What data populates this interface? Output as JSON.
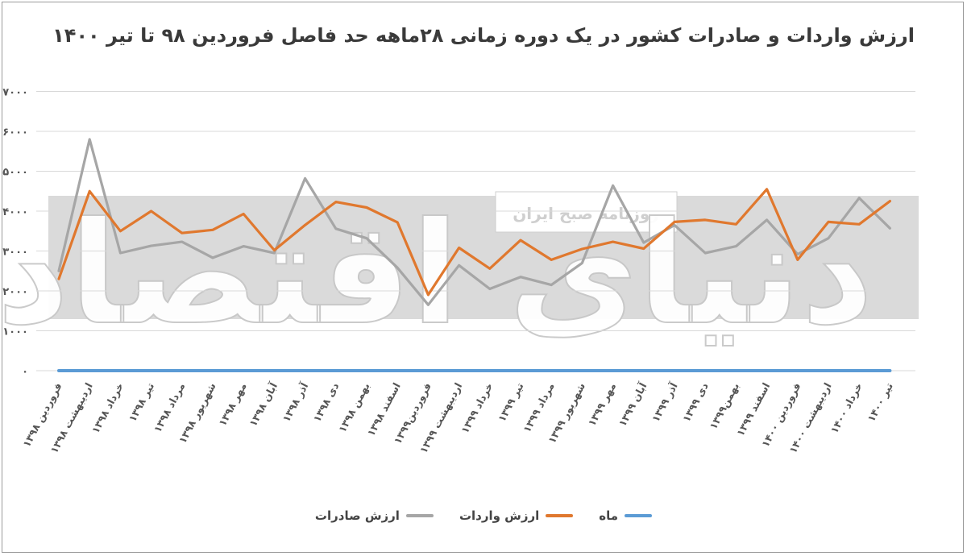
{
  "chart_data": {
    "type": "line",
    "title": "ارزش واردات و صادرات کشور در یک دوره زمانی ۲۸ماهه حد فاصل فروردین ۹۸ تا تیر ۱۴۰۰",
    "ylim": [
      0,
      7000
    ],
    "yticks": [
      "۰",
      "۱۰۰۰",
      "۲۰۰۰",
      "۳۰۰۰",
      "۴۰۰۰",
      "۵۰۰۰",
      "۶۰۰۰",
      "۷۰۰۰"
    ],
    "ytick_values": [
      0,
      1000,
      2000,
      3000,
      4000,
      5000,
      6000,
      7000
    ],
    "grid": true,
    "legend_position": "bottom",
    "categories": [
      "فروردین ۱۳۹۸",
      "اردیبهشت ۱۳۹۸",
      "خرداد ۱۳۹۸",
      "تیر ۱۳۹۸",
      "مرداد ۱۳۹۸",
      "شهریور ۱۳۹۸",
      "مهر ۱۳۹۸",
      "آبان ۱۳۹۸",
      "آذر ۱۳۹۸",
      "دی ۱۳۹۸",
      "بهمن ۱۳۹۸",
      "اسفند ۱۳۹۸",
      "فروردین۱۳۹۹",
      "اردیبهشت ۱۳۹۹",
      "خرداد ۱۳۹۹",
      "تیر ۱۳۹۹",
      "مرداد ۱۳۹۹",
      "شهریور ۱۳۹۹",
      "مهر ۱۳۹۹",
      "آبان ۱۳۹۹",
      "آذر ۱۳۹۹",
      "دی ۱۳۹۹",
      "بهمن۱۳۹۹",
      "اسفند ۱۳۹۹",
      "فروردین ۱۴۰۰",
      "اردیبهشت ۱۴۰۰",
      "خرداد ۱۴۰۰",
      "تیر ۱۴۰۰"
    ],
    "series": [
      {
        "name": "ماه",
        "color": "#5b9bd5",
        "values": [
          0,
          0,
          0,
          0,
          0,
          0,
          0,
          0,
          0,
          0,
          0,
          0,
          0,
          0,
          0,
          0,
          0,
          0,
          0,
          0,
          0,
          0,
          0,
          0,
          0,
          0,
          0,
          0
        ]
      },
      {
        "name": "ارزش واردات",
        "color": "#e0782e",
        "values": [
          2300,
          4500,
          3500,
          4000,
          3450,
          3530,
          3930,
          3020,
          3650,
          4230,
          4090,
          3720,
          1900,
          3080,
          2560,
          3270,
          2780,
          3050,
          3230,
          3060,
          3730,
          3780,
          3670,
          4550,
          2780,
          3730,
          3670,
          4250
        ]
      },
      {
        "name": "ارزش صادرات",
        "color": "#a6a6a6",
        "values": [
          2500,
          5800,
          2950,
          3130,
          3230,
          2830,
          3120,
          2950,
          4820,
          3560,
          3320,
          2580,
          1650,
          2640,
          2050,
          2350,
          2150,
          2700,
          4640,
          3210,
          3650,
          2950,
          3120,
          3780,
          2920,
          3320,
          4330,
          3570
        ]
      }
    ]
  },
  "watermark": {
    "logo_text": "دنیای اقتصاد",
    "banner_text": "روزنامه صبح ایران"
  }
}
